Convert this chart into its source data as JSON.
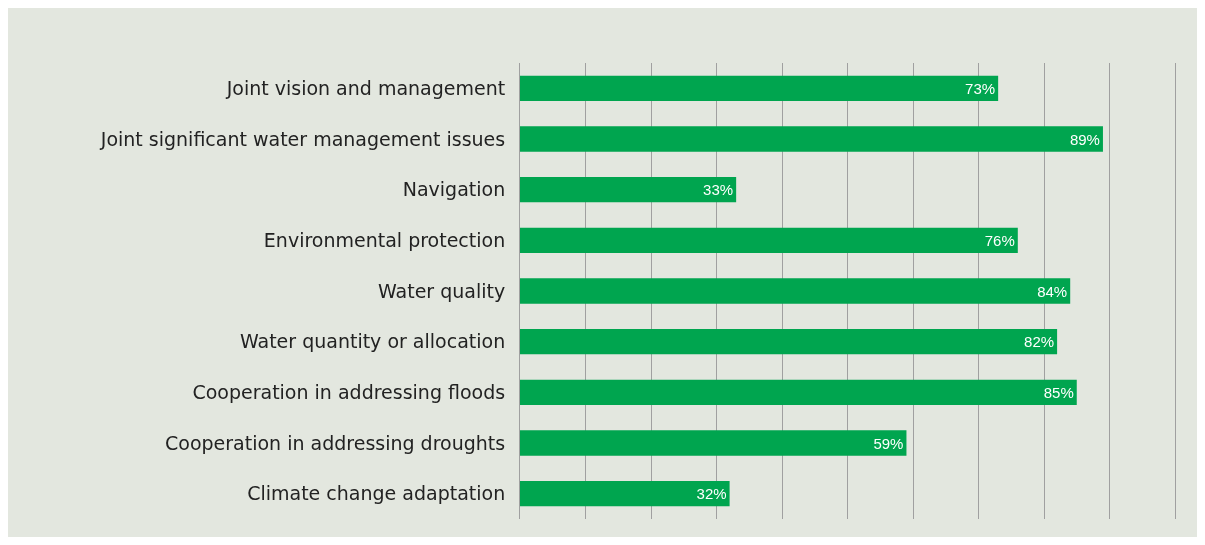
{
  "chart_data": {
    "type": "bar",
    "orientation": "horizontal",
    "categories": [
      "Joint vision and management",
      "Joint significant water management issues",
      "Navigation",
      "Environmental protection",
      "Water quality",
      "Water quantity or allocation",
      "Cooperation in addressing floods",
      "Cooperation in addressing droughts",
      "Climate change adaptation"
    ],
    "values": [
      73,
      89,
      33,
      76,
      84,
      82,
      85,
      59,
      32
    ],
    "color": "#00a54f",
    "value_labels": [
      "73%",
      "89%",
      "33%",
      "76%",
      "84%",
      "82%",
      "85%",
      "59%",
      "32%"
    ],
    "xlim": [
      0,
      100
    ],
    "xticks": [
      {
        "value": 0,
        "label": null
      },
      {
        "value": 10,
        "label": null
      },
      {
        "value": 20,
        "label": null
      },
      {
        "value": 30,
        "label": null
      },
      {
        "value": 40,
        "label": null
      },
      {
        "value": 50,
        "label": null
      },
      {
        "value": 60,
        "label": null
      },
      {
        "value": 70,
        "label": null
      },
      {
        "value": 80,
        "label": null
      },
      {
        "value": 90,
        "label": null
      },
      {
        "value": 100,
        "label": null
      }
    ],
    "grid": "x",
    "tick_labels": "y",
    "legend": false
  }
}
